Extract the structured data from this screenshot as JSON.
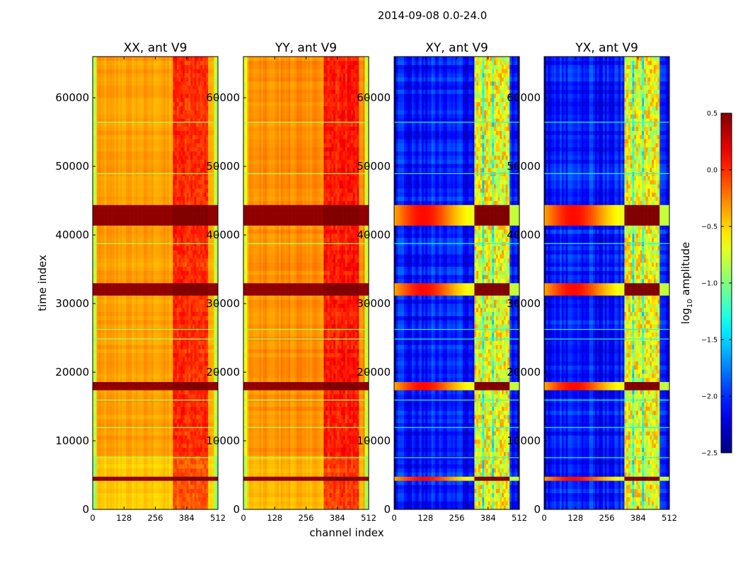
{
  "chart_data": {
    "type": "heatmap",
    "title": "2014-09-08 0.0-24.0",
    "xlabel": "channel index",
    "ylabel": "time index",
    "xlim": [
      0,
      512
    ],
    "ylim": [
      0,
      66000
    ],
    "x_ticks": [
      0,
      128,
      256,
      384,
      512
    ],
    "y_ticks": [
      0,
      10000,
      20000,
      30000,
      40000,
      50000,
      60000
    ],
    "panels": [
      {
        "title": "XX, ant V9",
        "pol": "XX",
        "base_log_amp": -0.35
      },
      {
        "title": "YY, ant V9",
        "pol": "YY",
        "base_log_amp": -0.3
      },
      {
        "title": "XY, ant V9",
        "pol": "XY",
        "base_log_amp": -2.05
      },
      {
        "title": "YX, ant V9",
        "pol": "YX",
        "base_log_amp": -2.05
      }
    ],
    "colorbar": {
      "label": "log10 amplitude",
      "label_main": "log",
      "label_sub": "10",
      "label_rest": " amplitude",
      "range": [
        -2.5,
        0.5
      ],
      "ticks": [
        0.5,
        0.0,
        -0.5,
        -1.0,
        -1.5,
        -2.0,
        -2.5
      ],
      "tick_labels": [
        "0.5",
        "0.0",
        "−0.5",
        "−1.0",
        "−1.5",
        "−2.0",
        "−2.5"
      ],
      "colormap": "jet"
    },
    "rfi_channel_range": [
      325,
      475
    ],
    "saturated_time_bands": [
      [
        41500,
        44500
      ],
      [
        31500,
        33000
      ],
      [
        17500,
        18500
      ],
      [
        4200,
        5000
      ]
    ]
  }
}
